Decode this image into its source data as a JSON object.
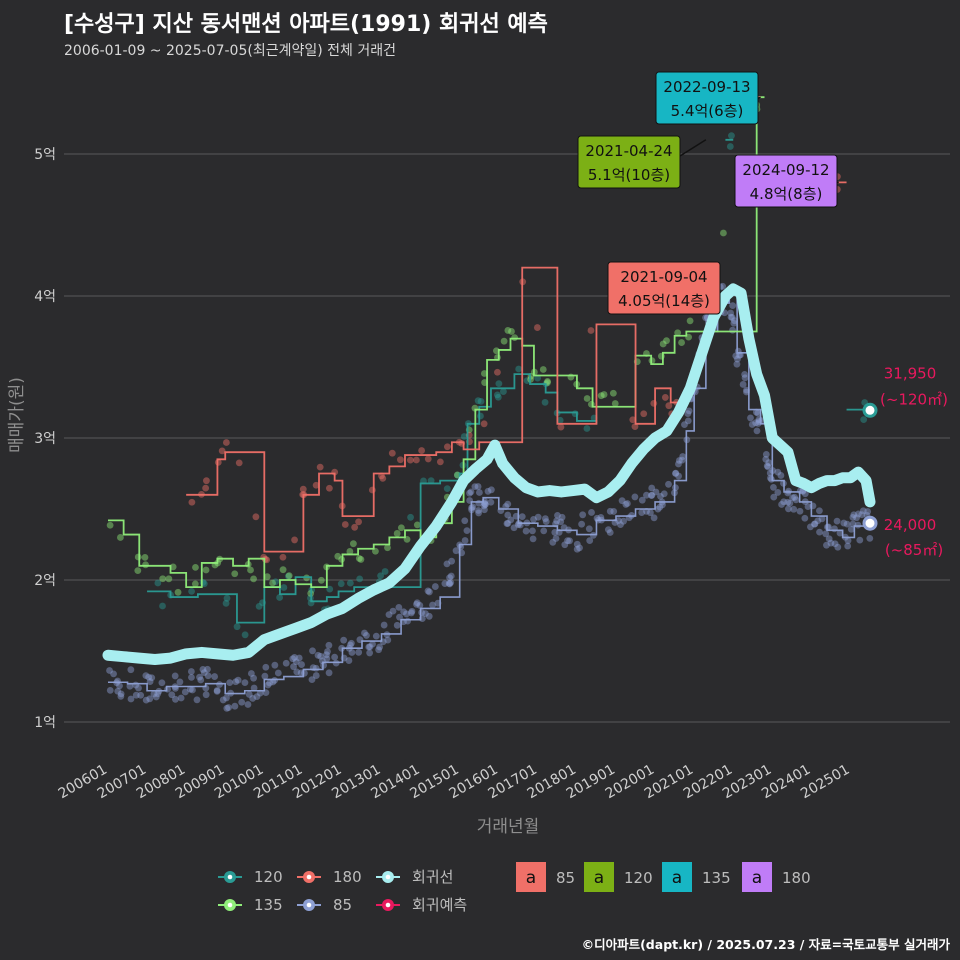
{
  "title": "[수성구] 지산 동서맨션 아파트(1991) 회귀선 예측",
  "subtitle": "2006-01-09 ~ 2025-07-05(최근계약일) 전체 거래건",
  "credit": "©디아파트(dapt.kr) / 2025.07.23 / 자료=국토교통부 실거래가",
  "colors": {
    "background": "#2b2b2d",
    "grid": "#5a5a5c",
    "s85": "#8ea0d4",
    "s120": "#2a9c95",
    "s135": "#90ee7a",
    "s180": "#f07068",
    "regression": "#a8eef0",
    "prediction": "#e8195e"
  },
  "chart_data": {
    "type": "line",
    "xlabel": "거래년월",
    "ylabel": "매매가(원)",
    "x_ticks": [
      "200601",
      "200701",
      "200801",
      "200901",
      "201001",
      "201101",
      "201201",
      "201301",
      "201401",
      "201501",
      "201601",
      "201701",
      "201801",
      "201901",
      "202001",
      "202101",
      "202201",
      "202301",
      "202401",
      "202501"
    ],
    "y_ticks": [
      {
        "value": 1,
        "label": "1억"
      },
      {
        "value": 2,
        "label": "2억"
      },
      {
        "value": 3,
        "label": "3억"
      },
      {
        "value": 4,
        "label": "4억"
      },
      {
        "value": 5,
        "label": "5억"
      }
    ],
    "ylim": [
      0.75,
      5.55
    ],
    "xlim": [
      2005.6,
      2025.95
    ],
    "y_unit": "억",
    "series": [
      {
        "name": "85",
        "key": "s85",
        "x": [
          2006.0,
          2006.5,
          2007.0,
          2007.5,
          2008.0,
          2008.5,
          2009.0,
          2009.5,
          2010.0,
          2010.5,
          2011.0,
          2011.5,
          2012.0,
          2012.5,
          2013.0,
          2013.5,
          2014.0,
          2014.5,
          2015.0,
          2015.3,
          2015.6,
          2016.0,
          2016.5,
          2017.0,
          2017.5,
          2018.0,
          2018.5,
          2019.0,
          2019.5,
          2020.0,
          2020.5,
          2020.8,
          2021.0,
          2021.3,
          2021.6,
          2021.9,
          2022.1,
          2022.4,
          2022.7,
          2023.0,
          2023.3,
          2023.7,
          2024.0,
          2024.4,
          2024.8,
          2025.1,
          2025.5
        ],
        "values": [
          1.28,
          1.27,
          1.22,
          1.25,
          1.25,
          1.27,
          1.2,
          1.22,
          1.3,
          1.32,
          1.37,
          1.42,
          1.52,
          1.57,
          1.62,
          1.72,
          1.8,
          1.88,
          2.25,
          2.55,
          2.58,
          2.5,
          2.4,
          2.38,
          2.35,
          2.32,
          2.42,
          2.45,
          2.5,
          2.55,
          2.7,
          3.05,
          3.35,
          3.75,
          3.95,
          4.02,
          3.6,
          3.2,
          3.1,
          2.7,
          2.62,
          2.55,
          2.45,
          2.35,
          2.3,
          2.38,
          2.4
        ]
      },
      {
        "name": "120",
        "key": "s120",
        "x": [
          2007.0,
          2007.6,
          2008.3,
          2009.0,
          2009.3,
          2009.6,
          2010.0,
          2010.4,
          2010.8,
          2011.2,
          2011.6,
          2011.9,
          2012.3,
          2012.7,
          2013.0,
          2014.0,
          2014.5,
          2015.0,
          2015.2,
          2015.5,
          2015.8,
          2016.0,
          2016.4,
          2016.8,
          2017.2,
          2017.5,
          2018.0,
          2018.5,
          2021.8,
          2022.0,
          2024.9,
          2025.5
        ],
        "values": [
          1.92,
          1.88,
          1.9,
          1.9,
          1.7,
          1.7,
          1.95,
          1.9,
          2.02,
          1.85,
          1.88,
          1.92,
          1.95,
          1.92,
          1.95,
          2.68,
          2.7,
          2.75,
          3.1,
          3.22,
          3.35,
          3.35,
          3.45,
          3.38,
          3.32,
          3.18,
          3.12,
          3.1,
          5.1,
          5.1,
          3.2,
          3.2
        ]
      },
      {
        "name": "135",
        "key": "s135",
        "x": [
          2006.0,
          2006.4,
          2006.8,
          2007.2,
          2007.6,
          2008.0,
          2008.4,
          2008.8,
          2009.2,
          2009.6,
          2010.0,
          2010.4,
          2010.8,
          2011.2,
          2011.6,
          2012.0,
          2012.4,
          2012.8,
          2013.2,
          2013.6,
          2014.0,
          2014.4,
          2014.8,
          2015.1,
          2015.4,
          2015.7,
          2016.0,
          2016.3,
          2016.6,
          2016.9,
          2017.2,
          2017.6,
          2018.0,
          2018.4,
          2018.8,
          2019.5,
          2019.9,
          2020.2,
          2020.5,
          2020.8,
          2021.1,
          2022.6,
          2022.8
        ],
        "values": [
          2.42,
          2.32,
          2.1,
          2.1,
          2.05,
          1.95,
          2.12,
          2.15,
          2.1,
          2.15,
          1.95,
          2.0,
          1.97,
          1.95,
          2.1,
          2.18,
          2.22,
          2.25,
          2.3,
          2.35,
          2.3,
          2.4,
          2.55,
          2.85,
          3.2,
          3.55,
          3.62,
          3.7,
          3.65,
          3.44,
          3.44,
          3.44,
          3.35,
          3.22,
          3.22,
          3.58,
          3.52,
          3.6,
          3.72,
          3.75,
          3.75,
          5.4,
          5.4
        ]
      },
      {
        "name": "180",
        "key": "s180",
        "x": [
          2008.0,
          2008.4,
          2008.8,
          2009.0,
          2009.5,
          2010.0,
          2010.4,
          2010.8,
          2011.0,
          2011.4,
          2011.8,
          2012.0,
          2012.4,
          2012.8,
          2013.2,
          2013.6,
          2014.0,
          2014.4,
          2014.8,
          2015.1,
          2015.5,
          2016.6,
          2017.5,
          2018.5,
          2019.5,
          2020.0,
          2020.4,
          2020.8,
          2022.5,
          2022.7,
          2024.5,
          2024.9
        ],
        "values": [
          2.6,
          2.6,
          2.85,
          2.9,
          2.9,
          2.2,
          2.2,
          2.2,
          2.6,
          2.75,
          2.7,
          2.45,
          2.45,
          2.75,
          2.8,
          2.88,
          2.88,
          2.9,
          2.97,
          2.92,
          2.97,
          4.2,
          3.1,
          3.8,
          3.1,
          3.35,
          3.25,
          3.25,
          5.4,
          5.4,
          4.8,
          4.8
        ]
      }
    ],
    "regression": {
      "name": "회귀선",
      "key": "regression",
      "x": [
        2006.0,
        2006.4,
        2006.8,
        2007.2,
        2007.6,
        2008.0,
        2008.4,
        2008.8,
        2009.2,
        2009.6,
        2010.0,
        2010.4,
        2010.8,
        2011.2,
        2011.6,
        2012.0,
        2012.4,
        2012.8,
        2013.2,
        2013.6,
        2014.0,
        2014.4,
        2014.8,
        2015.1,
        2015.4,
        2015.7,
        2015.9,
        2016.1,
        2016.4,
        2016.7,
        2017.0,
        2017.3,
        2017.6,
        2017.9,
        2018.2,
        2018.5,
        2018.8,
        2019.1,
        2019.4,
        2019.7,
        2020.0,
        2020.3,
        2020.6,
        2020.9,
        2021.2,
        2021.5,
        2021.8,
        2022.0,
        2022.2,
        2022.4,
        2022.6,
        2022.8,
        2023.0,
        2023.2,
        2023.4,
        2023.6,
        2023.8,
        2024.0,
        2024.2,
        2024.4,
        2024.6,
        2024.8,
        2025.0,
        2025.2,
        2025.4,
        2025.5
      ],
      "values": [
        1.47,
        1.46,
        1.45,
        1.44,
        1.45,
        1.48,
        1.49,
        1.48,
        1.47,
        1.49,
        1.58,
        1.62,
        1.66,
        1.7,
        1.76,
        1.8,
        1.87,
        1.93,
        1.98,
        2.08,
        2.24,
        2.38,
        2.55,
        2.7,
        2.78,
        2.85,
        2.95,
        2.82,
        2.72,
        2.65,
        2.62,
        2.63,
        2.62,
        2.63,
        2.64,
        2.58,
        2.62,
        2.7,
        2.82,
        2.92,
        3.0,
        3.05,
        3.18,
        3.35,
        3.6,
        3.85,
        4.0,
        4.05,
        4.02,
        3.7,
        3.45,
        3.3,
        3.0,
        2.95,
        2.9,
        2.7,
        2.68,
        2.65,
        2.68,
        2.7,
        2.7,
        2.72,
        2.72,
        2.76,
        2.7,
        2.55
      ]
    },
    "predictions": [
      {
        "label": "31,950",
        "area": "(~120㎡)",
        "x": 2025.5,
        "value": 3.195
      },
      {
        "label": "24,000",
        "area": "(~85㎡)",
        "x": 2025.5,
        "value": 2.4
      }
    ],
    "annotations": [
      {
        "date": "2022-09-13",
        "price": "5.4억(6층)",
        "color": "#17b6c4",
        "x": 2022.7,
        "value": 5.4
      },
      {
        "date": "2021-04-24",
        "price": "5.1억(10층)",
        "color": "#7cb015",
        "x": 2021.3,
        "value": 5.1
      },
      {
        "date": "2024-09-12",
        "price": "4.8억(8층)",
        "color": "#c07cf7",
        "x": 2024.7,
        "value": 4.8
      },
      {
        "date": "2021-09-04",
        "price": "4.05억(14층)",
        "color": "#f07068",
        "x": 2021.67,
        "value": 4.05
      }
    ],
    "legend": {
      "lines": [
        {
          "label": "120",
          "key": "s120"
        },
        {
          "label": "180",
          "key": "s180"
        },
        {
          "label": "회귀선",
          "key": "regression"
        },
        {
          "label": "135",
          "key": "s135"
        },
        {
          "label": "85",
          "key": "s85"
        },
        {
          "label": "회귀예측",
          "key": "prediction"
        }
      ],
      "boxes": [
        {
          "label": "85",
          "color": "#f07068"
        },
        {
          "label": "120",
          "color": "#7cb015"
        },
        {
          "label": "135",
          "color": "#17b6c4"
        },
        {
          "label": "180",
          "color": "#c07cf7"
        }
      ],
      "box_letter": "a"
    }
  }
}
